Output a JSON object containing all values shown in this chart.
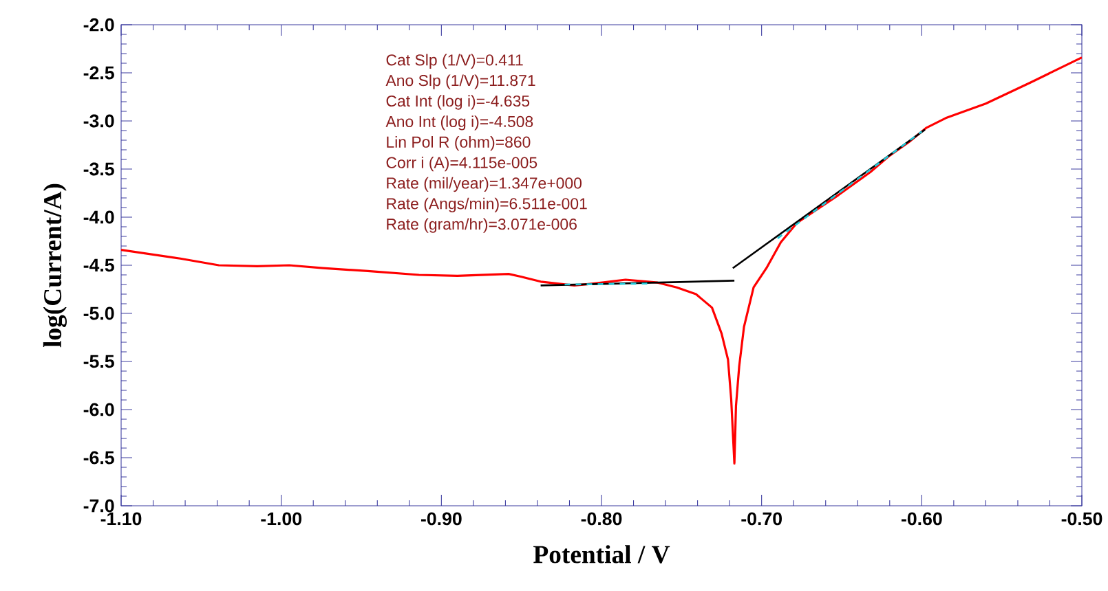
{
  "chart_data": {
    "type": "line",
    "xlabel": "Potential / V",
    "ylabel": "log(Current/A)",
    "xlim": [
      -1.1,
      -0.5
    ],
    "ylim": [
      -7.0,
      -2.0
    ],
    "xticks": [
      {
        "value": -1.1,
        "label": "-1.10"
      },
      {
        "value": -1.0,
        "label": "-1.00"
      },
      {
        "value": -0.9,
        "label": "-0.90"
      },
      {
        "value": -0.8,
        "label": "-0.80"
      },
      {
        "value": -0.7,
        "label": "-0.70"
      },
      {
        "value": -0.6,
        "label": "-0.60"
      },
      {
        "value": -0.5,
        "label": "-0.50"
      }
    ],
    "yticks": [
      {
        "value": -7.0,
        "label": "-7.0"
      },
      {
        "value": -6.5,
        "label": "-6.5"
      },
      {
        "value": -6.0,
        "label": "-6.0"
      },
      {
        "value": -5.5,
        "label": "-5.5"
      },
      {
        "value": -5.0,
        "label": "-5.0"
      },
      {
        "value": -4.5,
        "label": "-4.5"
      },
      {
        "value": -4.0,
        "label": "-4.0"
      },
      {
        "value": -3.5,
        "label": "-3.5"
      },
      {
        "value": -3.0,
        "label": "-3.0"
      },
      {
        "value": -2.5,
        "label": "-2.5"
      },
      {
        "value": -2.0,
        "label": "-2.0"
      }
    ],
    "grid": false,
    "series": [
      {
        "color": "#ff0000",
        "line_style": "solid",
        "x": [
          -1.1,
          -1.063,
          -1.039,
          -1.015,
          -0.995,
          -0.974,
          -0.946,
          -0.914,
          -0.89,
          -0.858,
          -0.85,
          -0.838,
          -0.817,
          -0.805,
          -0.785,
          -0.765,
          -0.753,
          -0.741,
          -0.731,
          -0.725,
          -0.721,
          -0.719,
          -0.717,
          -0.716,
          -0.714,
          -0.711,
          -0.705,
          -0.697,
          -0.688,
          -0.678,
          -0.652,
          -0.632,
          -0.62,
          -0.608,
          -0.597,
          -0.585,
          -0.56,
          -0.532,
          -0.5
        ],
        "values": [
          -4.34,
          -4.43,
          -4.5,
          -4.51,
          -4.5,
          -4.53,
          -4.56,
          -4.6,
          -4.61,
          -4.59,
          -4.62,
          -4.67,
          -4.71,
          -4.69,
          -4.65,
          -4.68,
          -4.73,
          -4.8,
          -4.94,
          -5.21,
          -5.48,
          -5.89,
          -6.56,
          -5.96,
          -5.55,
          -5.14,
          -4.73,
          -4.53,
          -4.26,
          -4.06,
          -3.77,
          -3.53,
          -3.36,
          -3.22,
          -3.07,
          -2.97,
          -2.82,
          -2.6,
          -2.34
        ]
      },
      {
        "color": "#000000",
        "line_style": "solid",
        "x": [
          -0.838,
          -0.717
        ],
        "values": [
          -4.71,
          -4.66
        ]
      },
      {
        "color": "#000000",
        "line_style": "solid",
        "x": [
          -0.718,
          -0.598
        ],
        "values": [
          -4.53,
          -3.09
        ]
      },
      {
        "color": "#20c8d8",
        "line_style": "dashed",
        "x": [
          -0.823,
          -0.77
        ],
        "values": [
          -4.7,
          -4.69
        ]
      },
      {
        "color": "#20c8d8",
        "line_style": "dashed",
        "x": [
          -0.69,
          -0.6
        ],
        "values": [
          -4.22,
          -3.11
        ]
      }
    ],
    "annotations": [
      "Cat Slp (1/V)=0.411",
      "Ano Slp (1/V)=11.871",
      "Cat Int (log i)=-4.635",
      "Ano Int (log i)=-4.508",
      "Lin Pol R (ohm)=860",
      "Corr i (A)=4.115e-005",
      "Rate (mil/year)=1.347e+000",
      "Rate (Angs/min)=6.511e-001",
      "Rate (gram/hr)=3.071e-006"
    ]
  }
}
